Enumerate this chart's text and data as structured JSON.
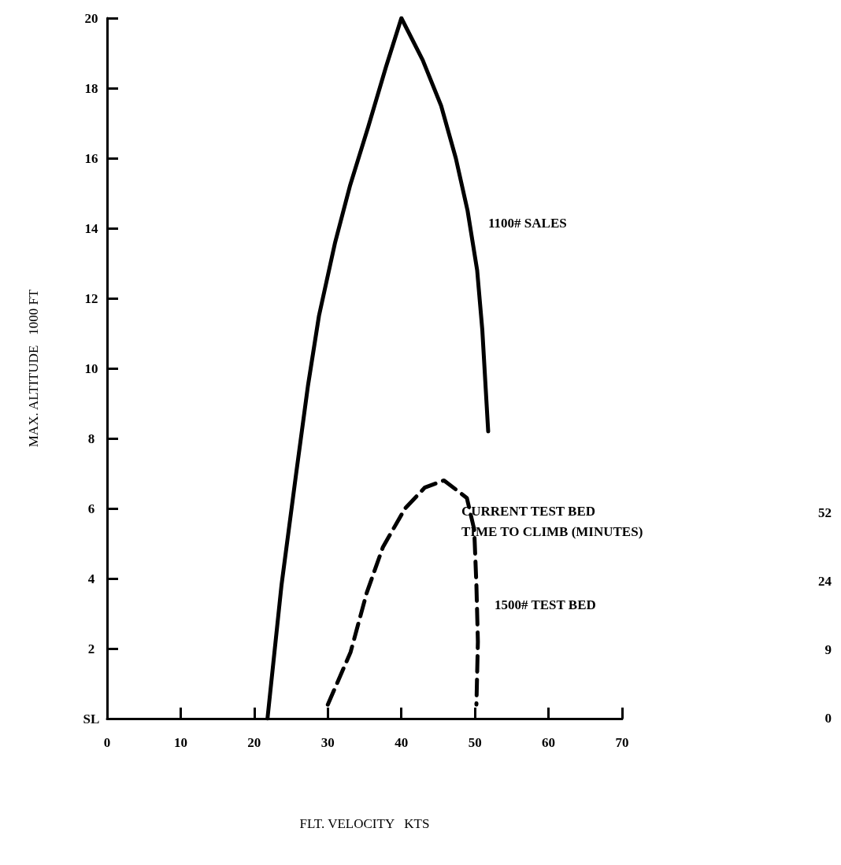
{
  "chart_data": {
    "type": "line",
    "xlabel": "FLT. VELOCITY   KTS",
    "ylabel": "MAX. ALTITUDE   1000 FT",
    "xlim": [
      0,
      70
    ],
    "xticks": [
      0,
      10,
      20,
      30,
      40,
      50,
      60,
      70
    ],
    "ylim": [
      0,
      20
    ],
    "yticks": [
      {
        "value": 0,
        "label": "SL"
      },
      2,
      4,
      6,
      8,
      10,
      12,
      14,
      16,
      18,
      20
    ],
    "grid": false,
    "legend": false,
    "marker": "none",
    "annotations": [
      "CURRENT TEST BED\nTIME TO CLIMB (MINUTES)",
      "52",
      "24",
      "9",
      "0"
    ],
    "series": [
      {
        "name": "1100# SALES",
        "color": "#000000",
        "line_style": "solid",
        "x": [
          21.8,
          23.7,
          25.7,
          27.3,
          28.8,
          31.0,
          33.0,
          35.5,
          37.9,
          40.0,
          42.9,
          45.4,
          47.4,
          49.0,
          50.3,
          51.0,
          51.8
        ],
        "values": [
          0,
          3.8,
          7.0,
          9.5,
          11.5,
          13.6,
          15.2,
          16.9,
          18.6,
          20.0,
          18.8,
          17.5,
          16.0,
          14.5,
          12.8,
          11.1,
          8.2
        ]
      },
      {
        "name": "1500# TEST BED",
        "color": "#000000",
        "line_style": "dashed",
        "x": [
          30,
          33.1,
          35.3,
          37.5,
          40.5,
          43.2,
          45.8,
          48.9,
          49.9,
          50.2,
          50.4,
          50.2
        ],
        "values": [
          0.4,
          1.9,
          3.6,
          4.9,
          6.0,
          6.6,
          6.8,
          6.3,
          5.4,
          3.8,
          2.2,
          0.4
        ]
      }
    ]
  }
}
